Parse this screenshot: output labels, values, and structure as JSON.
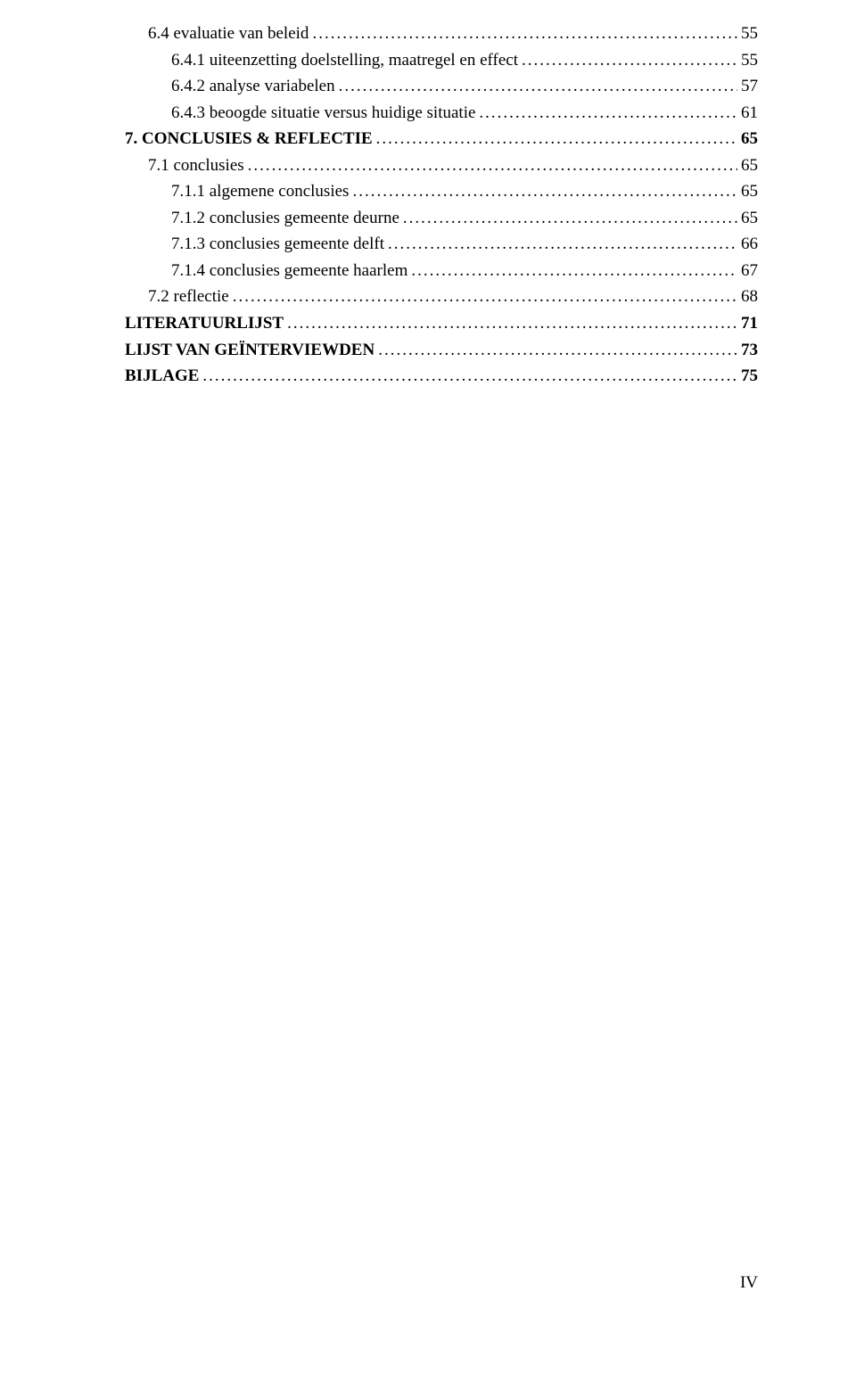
{
  "leaderChar": ".",
  "toc": [
    {
      "label": "6.4 evaluatie van beleid",
      "page": "55",
      "indent": 1,
      "bold": false
    },
    {
      "label": "6.4.1 uiteenzetting doelstelling, maatregel en effect",
      "page": "55",
      "indent": 2,
      "bold": false
    },
    {
      "label": "6.4.2 analyse variabelen",
      "page": "57",
      "indent": 2,
      "bold": false
    },
    {
      "label": "6.4.3 beoogde situatie versus huidige situatie",
      "page": "61",
      "indent": 2,
      "bold": false
    },
    {
      "label": "7. CONCLUSIES & REFLECTIE",
      "page": "65",
      "indent": 0,
      "bold": true
    },
    {
      "label": "7.1 conclusies",
      "page": "65",
      "indent": 1,
      "bold": false
    },
    {
      "label": "7.1.1 algemene conclusies",
      "page": "65",
      "indent": 2,
      "bold": false
    },
    {
      "label": "7.1.2 conclusies gemeente deurne",
      "page": "65",
      "indent": 2,
      "bold": false
    },
    {
      "label": "7.1.3 conclusies gemeente delft",
      "page": "66",
      "indent": 2,
      "bold": false
    },
    {
      "label": "7.1.4 conclusies gemeente haarlem",
      "page": "67",
      "indent": 2,
      "bold": false
    },
    {
      "label": "7.2 reflectie",
      "page": "68",
      "indent": 1,
      "bold": false
    },
    {
      "label": "LITERATUURLIJST",
      "page": "71",
      "indent": 0,
      "bold": true
    },
    {
      "label": "LIJST VAN GEÏNTERVIEWDEN",
      "page": "73",
      "indent": 0,
      "bold": true
    },
    {
      "label": "BIJLAGE",
      "page": "75",
      "indent": 0,
      "bold": true
    }
  ],
  "footer": "IV"
}
